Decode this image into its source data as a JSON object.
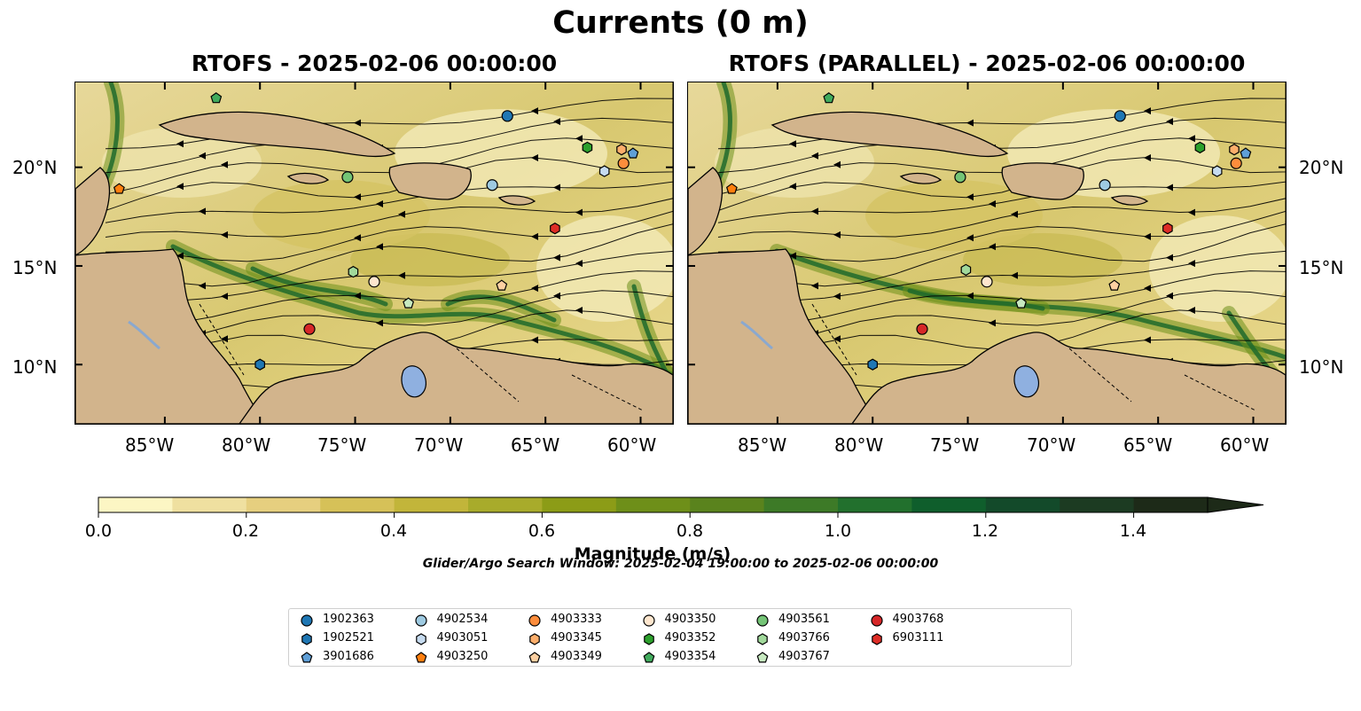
{
  "figure": {
    "suptitle": "Currents (0 m)",
    "left_title": "RTOFS - 2025-02-06 00:00:00",
    "right_title": "RTOFS (PARALLEL) - 2025-02-06 00:00:00",
    "search_window": "Glider/Argo Search Window: 2025-02-04 19:00:00 to 2025-02-06 00:00:00"
  },
  "axes": {
    "lat_labels": [
      "20°N",
      "15°N",
      "10°N"
    ],
    "lon_labels": [
      "85°W",
      "80°W",
      "75°W",
      "70°W",
      "65°W",
      "60°W"
    ],
    "lat_values": [
      20,
      15,
      10
    ],
    "lon_values": [
      -85,
      -80,
      -75,
      -70,
      -65,
      -60
    ],
    "extent": {
      "lon": [
        -89.7,
        -58.3
      ],
      "lat": [
        7.0,
        24.3
      ]
    }
  },
  "colorbar": {
    "title": "Magnitude (m/s)",
    "tick_labels": [
      "0.0",
      "0.2",
      "0.4",
      "0.6",
      "0.8",
      "1.0",
      "1.2",
      "1.4"
    ],
    "min": 0.0,
    "max": 1.5,
    "step": 0.1,
    "extend": "max",
    "colors": [
      "#fcf6c4",
      "#efe0a0",
      "#e6cf7f",
      "#d6c158",
      "#c2b53a",
      "#a8ab2b",
      "#8c9c17",
      "#6e8f19",
      "#5a831d",
      "#3d7a27",
      "#22702d",
      "#0f5e2c",
      "#134a2a",
      "#1c3b22",
      "#1d2a18"
    ]
  },
  "floats": [
    {
      "id": "1902363",
      "marker": "circle",
      "color": "#1f77b4",
      "lon": -67.0,
      "lat": 22.6,
      "lon_p": -67.0,
      "lat_p": 22.6
    },
    {
      "id": "1902521",
      "marker": "hexagon",
      "color": "#1f77b4",
      "lon": -80.0,
      "lat": 10.0,
      "lon_p": -80.0,
      "lat_p": 10.0
    },
    {
      "id": "3901686",
      "marker": "pentagon",
      "color": "#5f9fd7",
      "lon": -60.4,
      "lat": 20.7,
      "lon_p": -60.4,
      "lat_p": 20.7
    },
    {
      "id": "4902534",
      "marker": "circle",
      "color": "#9ecae1",
      "lon": -67.8,
      "lat": 19.1,
      "lon_p": -67.8,
      "lat_p": 19.1
    },
    {
      "id": "4903051",
      "marker": "hexagon",
      "color": "#c6dbef",
      "lon": -61.9,
      "lat": 19.8,
      "lon_p": -61.9,
      "lat_p": 19.8
    },
    {
      "id": "4903250",
      "marker": "pentagon",
      "color": "#ff7f0e",
      "lon": -87.4,
      "lat": 18.9,
      "lon_p": -87.4,
      "lat_p": 18.9
    },
    {
      "id": "4903333",
      "marker": "circle",
      "color": "#fd8d3c",
      "lon": -60.9,
      "lat": 20.2,
      "lon_p": -60.9,
      "lat_p": 20.2
    },
    {
      "id": "4903345",
      "marker": "hexagon",
      "color": "#fdae6b",
      "lon": -61.0,
      "lat": 20.9,
      "lon_p": -61.0,
      "lat_p": 20.9
    },
    {
      "id": "4903349",
      "marker": "pentagon",
      "color": "#fdd0a2",
      "lon": -67.3,
      "lat": 14.0,
      "lon_p": -67.3,
      "lat_p": 14.0
    },
    {
      "id": "4903350",
      "marker": "circle",
      "color": "#fee6ce",
      "lon": -74.0,
      "lat": 14.2,
      "lon_p": -74.0,
      "lat_p": 14.2
    },
    {
      "id": "4903352",
      "marker": "hexagon",
      "color": "#2ca02c",
      "lon": -62.8,
      "lat": 21.0,
      "lon_p": -62.8,
      "lat_p": 21.0
    },
    {
      "id": "4903354",
      "marker": "pentagon",
      "color": "#41ab5d",
      "lon": -82.3,
      "lat": 23.5,
      "lon_p": -82.3,
      "lat_p": 23.5
    },
    {
      "id": "4903561",
      "marker": "circle",
      "color": "#74c476",
      "lon": -75.4,
      "lat": 19.5,
      "lon_p": -75.4,
      "lat_p": 19.5
    },
    {
      "id": "4903766",
      "marker": "hexagon",
      "color": "#a1d99b",
      "lon": -75.1,
      "lat": 14.7,
      "lon_p": -75.1,
      "lat_p": 14.8
    },
    {
      "id": "4903767",
      "marker": "pentagon",
      "color": "#c7e9c0",
      "lon": -72.2,
      "lat": 13.1,
      "lon_p": -72.2,
      "lat_p": 13.1
    },
    {
      "id": "4903768",
      "marker": "circle",
      "color": "#d62728",
      "lon": -77.4,
      "lat": 11.8,
      "lon_p": -77.4,
      "lat_p": 11.8
    },
    {
      "id": "6903111",
      "marker": "hexagon",
      "color": "#de2d26",
      "lon": -64.5,
      "lat": 16.9,
      "lon_p": -64.5,
      "lat_p": 16.9
    }
  ]
}
